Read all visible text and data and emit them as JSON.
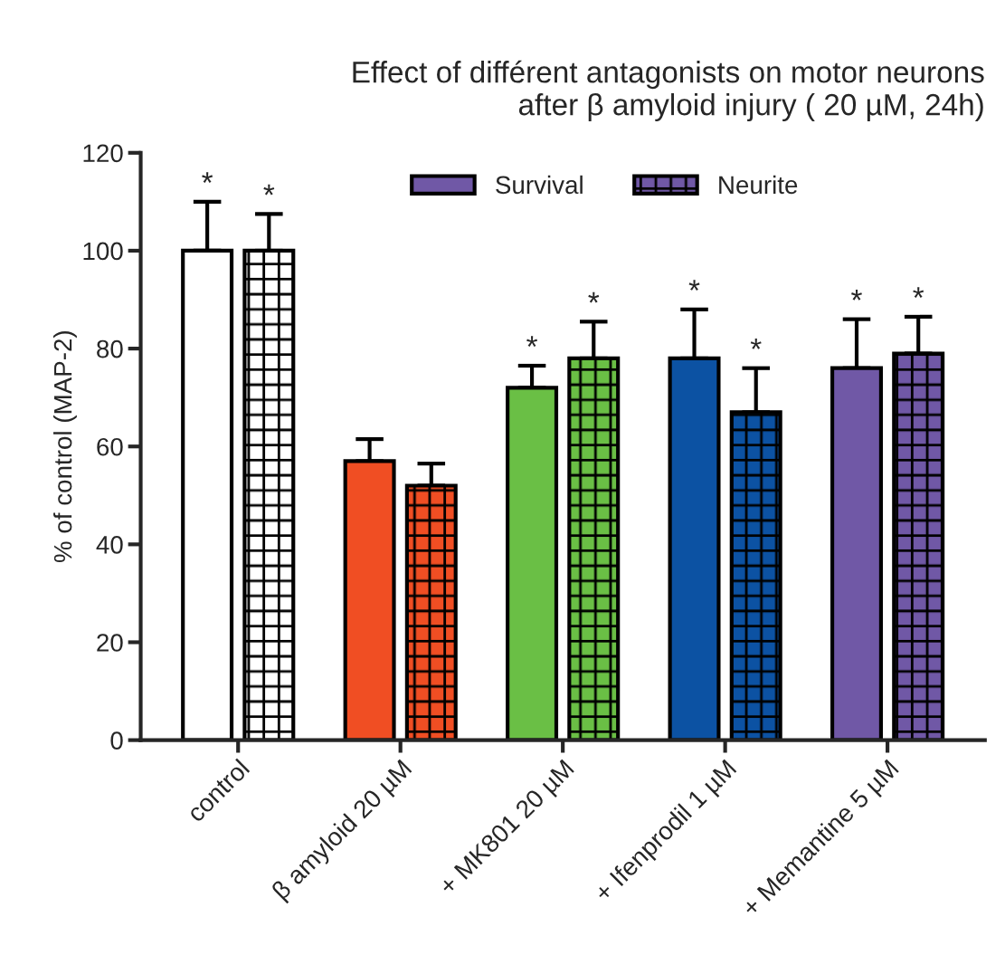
{
  "chart_data": {
    "type": "bar",
    "title": "Effect of différent antagonists on motor neurons\nafter β amyloid injury ( 20 µM, 24h)",
    "ylabel": "% of control (MAP-2)",
    "categories": [
      "control",
      "β amyloid 20 µM",
      "+ MK801 20 µM",
      "+ Ifenprodil 1 µM",
      "+ Memantine 5 µM"
    ],
    "series": [
      {
        "name": "Survival",
        "color": "#7058a6",
        "colors": [
          "#ffffff",
          "#f04e23",
          "#6abf45",
          "#0c52a3",
          "#7058a6"
        ],
        "values": [
          100,
          57,
          72,
          78,
          76
        ],
        "errors": [
          [
            100,
            110
          ],
          [
            57,
            61.5
          ],
          [
            72,
            76.5
          ],
          [
            78,
            88
          ],
          [
            76,
            86
          ]
        ],
        "value_labels": [
          "*",
          null,
          "*",
          "*",
          "*"
        ]
      },
      {
        "name": "Neurite",
        "color": "#7058a6",
        "colors": [
          "#ffffff",
          "#f04e23",
          "#6abf45",
          "#0c52a3",
          "#7058a6"
        ],
        "values": [
          100,
          52,
          78,
          67,
          79
        ],
        "errors": [
          [
            100,
            107.5
          ],
          [
            52,
            56.5
          ],
          [
            78,
            85.5
          ],
          [
            67,
            76
          ],
          [
            79,
            86.5
          ]
        ],
        "value_labels": [
          "*",
          null,
          "*",
          "*",
          "*"
        ]
      }
    ],
    "ylim": [
      0,
      120
    ],
    "yticks": [
      0,
      20,
      40,
      60,
      80,
      100,
      120
    ],
    "grid": false,
    "legend": "top"
  }
}
